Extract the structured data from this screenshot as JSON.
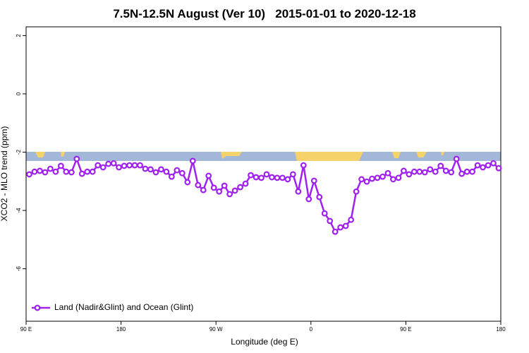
{
  "chart_data": {
    "type": "line",
    "title": "7.5N-12.5N August (Ver 10)   2015-01-01 to 2020-12-18",
    "x_label": "Longitude (deg E)",
    "y_label": "XCO2 - MLO trend (ppm)",
    "xlim": [
      90,
      540
    ],
    "ylim": [
      -7.8,
      2.3
    ],
    "xticks": [
      {
        "value": 90,
        "label": "90 E"
      },
      180,
      {
        "value": 270,
        "label": "90 W"
      },
      {
        "value": 360,
        "label": "0"
      },
      {
        "value": 450,
        "label": "90 E"
      },
      {
        "value": 540,
        "label": "180"
      }
    ],
    "yticks": [
      2,
      0,
      -2,
      -4,
      -6
    ],
    "legend_position": "bottom-left",
    "x": [
      93,
      98,
      103,
      108,
      113,
      118,
      123,
      128,
      133,
      138,
      143,
      148,
      153,
      158,
      163,
      168,
      173,
      178,
      183,
      188,
      193,
      198,
      203,
      208,
      213,
      218,
      223,
      228,
      233,
      238,
      243,
      248,
      253,
      258,
      263,
      268,
      273,
      278,
      283,
      288,
      293,
      298,
      303,
      308,
      313,
      318,
      323,
      328,
      333,
      338,
      343,
      348,
      353,
      358,
      363,
      368,
      373,
      378,
      383,
      388,
      393,
      398,
      403,
      408,
      413,
      418,
      423,
      428,
      433,
      438,
      443,
      448,
      453,
      458,
      463,
      468,
      473,
      478,
      483,
      488,
      493,
      498,
      503,
      508,
      513,
      518,
      523,
      528,
      533,
      538
    ],
    "series": [
      {
        "name": "Land (Nadir&Glint) and Ocean (Glint)",
        "color": "#a020f0",
        "values": [
          -2.76,
          -2.67,
          -2.64,
          -2.69,
          -2.57,
          -2.67,
          -2.47,
          -2.67,
          -2.69,
          -2.23,
          -2.74,
          -2.67,
          -2.67,
          -2.45,
          -2.52,
          -2.4,
          -2.38,
          -2.52,
          -2.47,
          -2.45,
          -2.45,
          -2.45,
          -2.57,
          -2.59,
          -2.69,
          -2.59,
          -2.67,
          -2.84,
          -2.62,
          -2.72,
          -3.03,
          -2.3,
          -3.13,
          -3.3,
          -2.81,
          -3.22,
          -3.35,
          -3.15,
          -3.44,
          -3.32,
          -3.2,
          -3.08,
          -2.79,
          -2.86,
          -2.88,
          -2.76,
          -2.86,
          -2.88,
          -2.88,
          -2.93,
          -2.76,
          -3.35,
          -2.45,
          -3.61,
          -2.98,
          -3.54,
          -4.1,
          -4.36,
          -4.73,
          -4.58,
          -4.53,
          -4.32,
          -3.35,
          -2.93,
          -3.01,
          -2.91,
          -2.88,
          -2.84,
          -2.72,
          -2.93,
          -2.88,
          -2.64,
          -2.76,
          -2.67,
          -2.67,
          -2.69,
          -2.59,
          -2.67,
          -2.47,
          -2.64,
          -2.69,
          -2.23,
          -2.74,
          -2.67,
          -2.67,
          -2.45,
          -2.52,
          -2.45,
          -2.38,
          -2.55
        ]
      }
    ]
  }
}
